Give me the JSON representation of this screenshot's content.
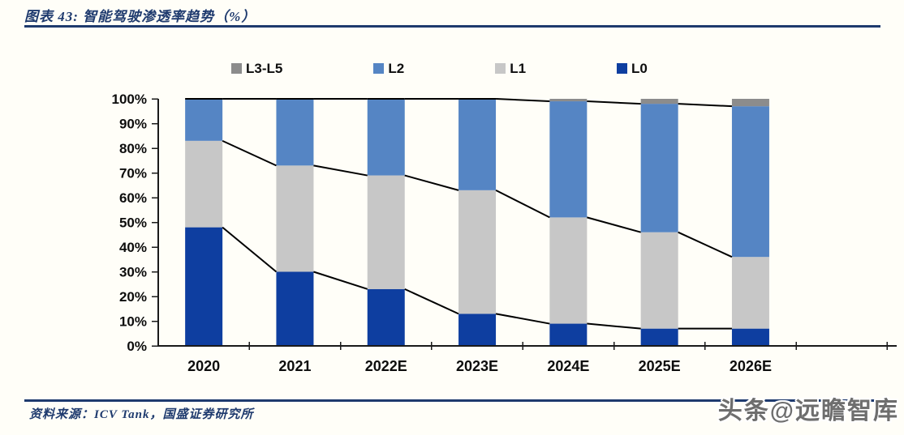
{
  "header": {
    "title": "图表 43:  智能驾驶渗透率趋势（%）"
  },
  "footer": {
    "source": "资料来源：ICV Tank，国盛证券研究所"
  },
  "watermark": "头条@远瞻智库",
  "colors": {
    "accent_navy": "#1e3a6e",
    "axis": "#1a1a1a",
    "connector": "#000000",
    "l0_dark_blue": "#0e3ea0",
    "l1_light_gray": "#c7c7c7",
    "l2_medium_blue": "#5585c4",
    "l3l5_gray": "#8c8c8c"
  },
  "chart_data": {
    "type": "bar",
    "stacked": true,
    "title": "智能驾驶渗透率趋势（%）",
    "categories": [
      "2020",
      "2021",
      "2022E",
      "2023E",
      "2024E",
      "2025E",
      "2026E"
    ],
    "series": [
      {
        "name": "L0",
        "color": "#0e3ea0",
        "values": [
          48,
          30,
          23,
          13,
          9,
          7,
          7
        ]
      },
      {
        "name": "L1",
        "color": "#c7c7c7",
        "values": [
          35,
          43,
          46,
          50,
          43,
          39,
          29
        ]
      },
      {
        "name": "L2",
        "color": "#5585c4",
        "values": [
          17,
          27,
          31,
          37,
          47,
          52,
          61
        ]
      },
      {
        "name": "L3-L5",
        "color": "#8c8c8c",
        "values": [
          0,
          0,
          0,
          0,
          1,
          2,
          3
        ]
      }
    ],
    "legend_order": [
      "L3-L5",
      "L2",
      "L1",
      "L0"
    ],
    "legend_position": "top",
    "xlabel": "",
    "ylabel": "",
    "ylim": [
      0,
      100
    ],
    "ytick_labels": [
      "0%",
      "10%",
      "20%",
      "30%",
      "40%",
      "50%",
      "60%",
      "70%",
      "80%",
      "90%",
      "100%"
    ],
    "grid": false,
    "connector_lines": true
  }
}
